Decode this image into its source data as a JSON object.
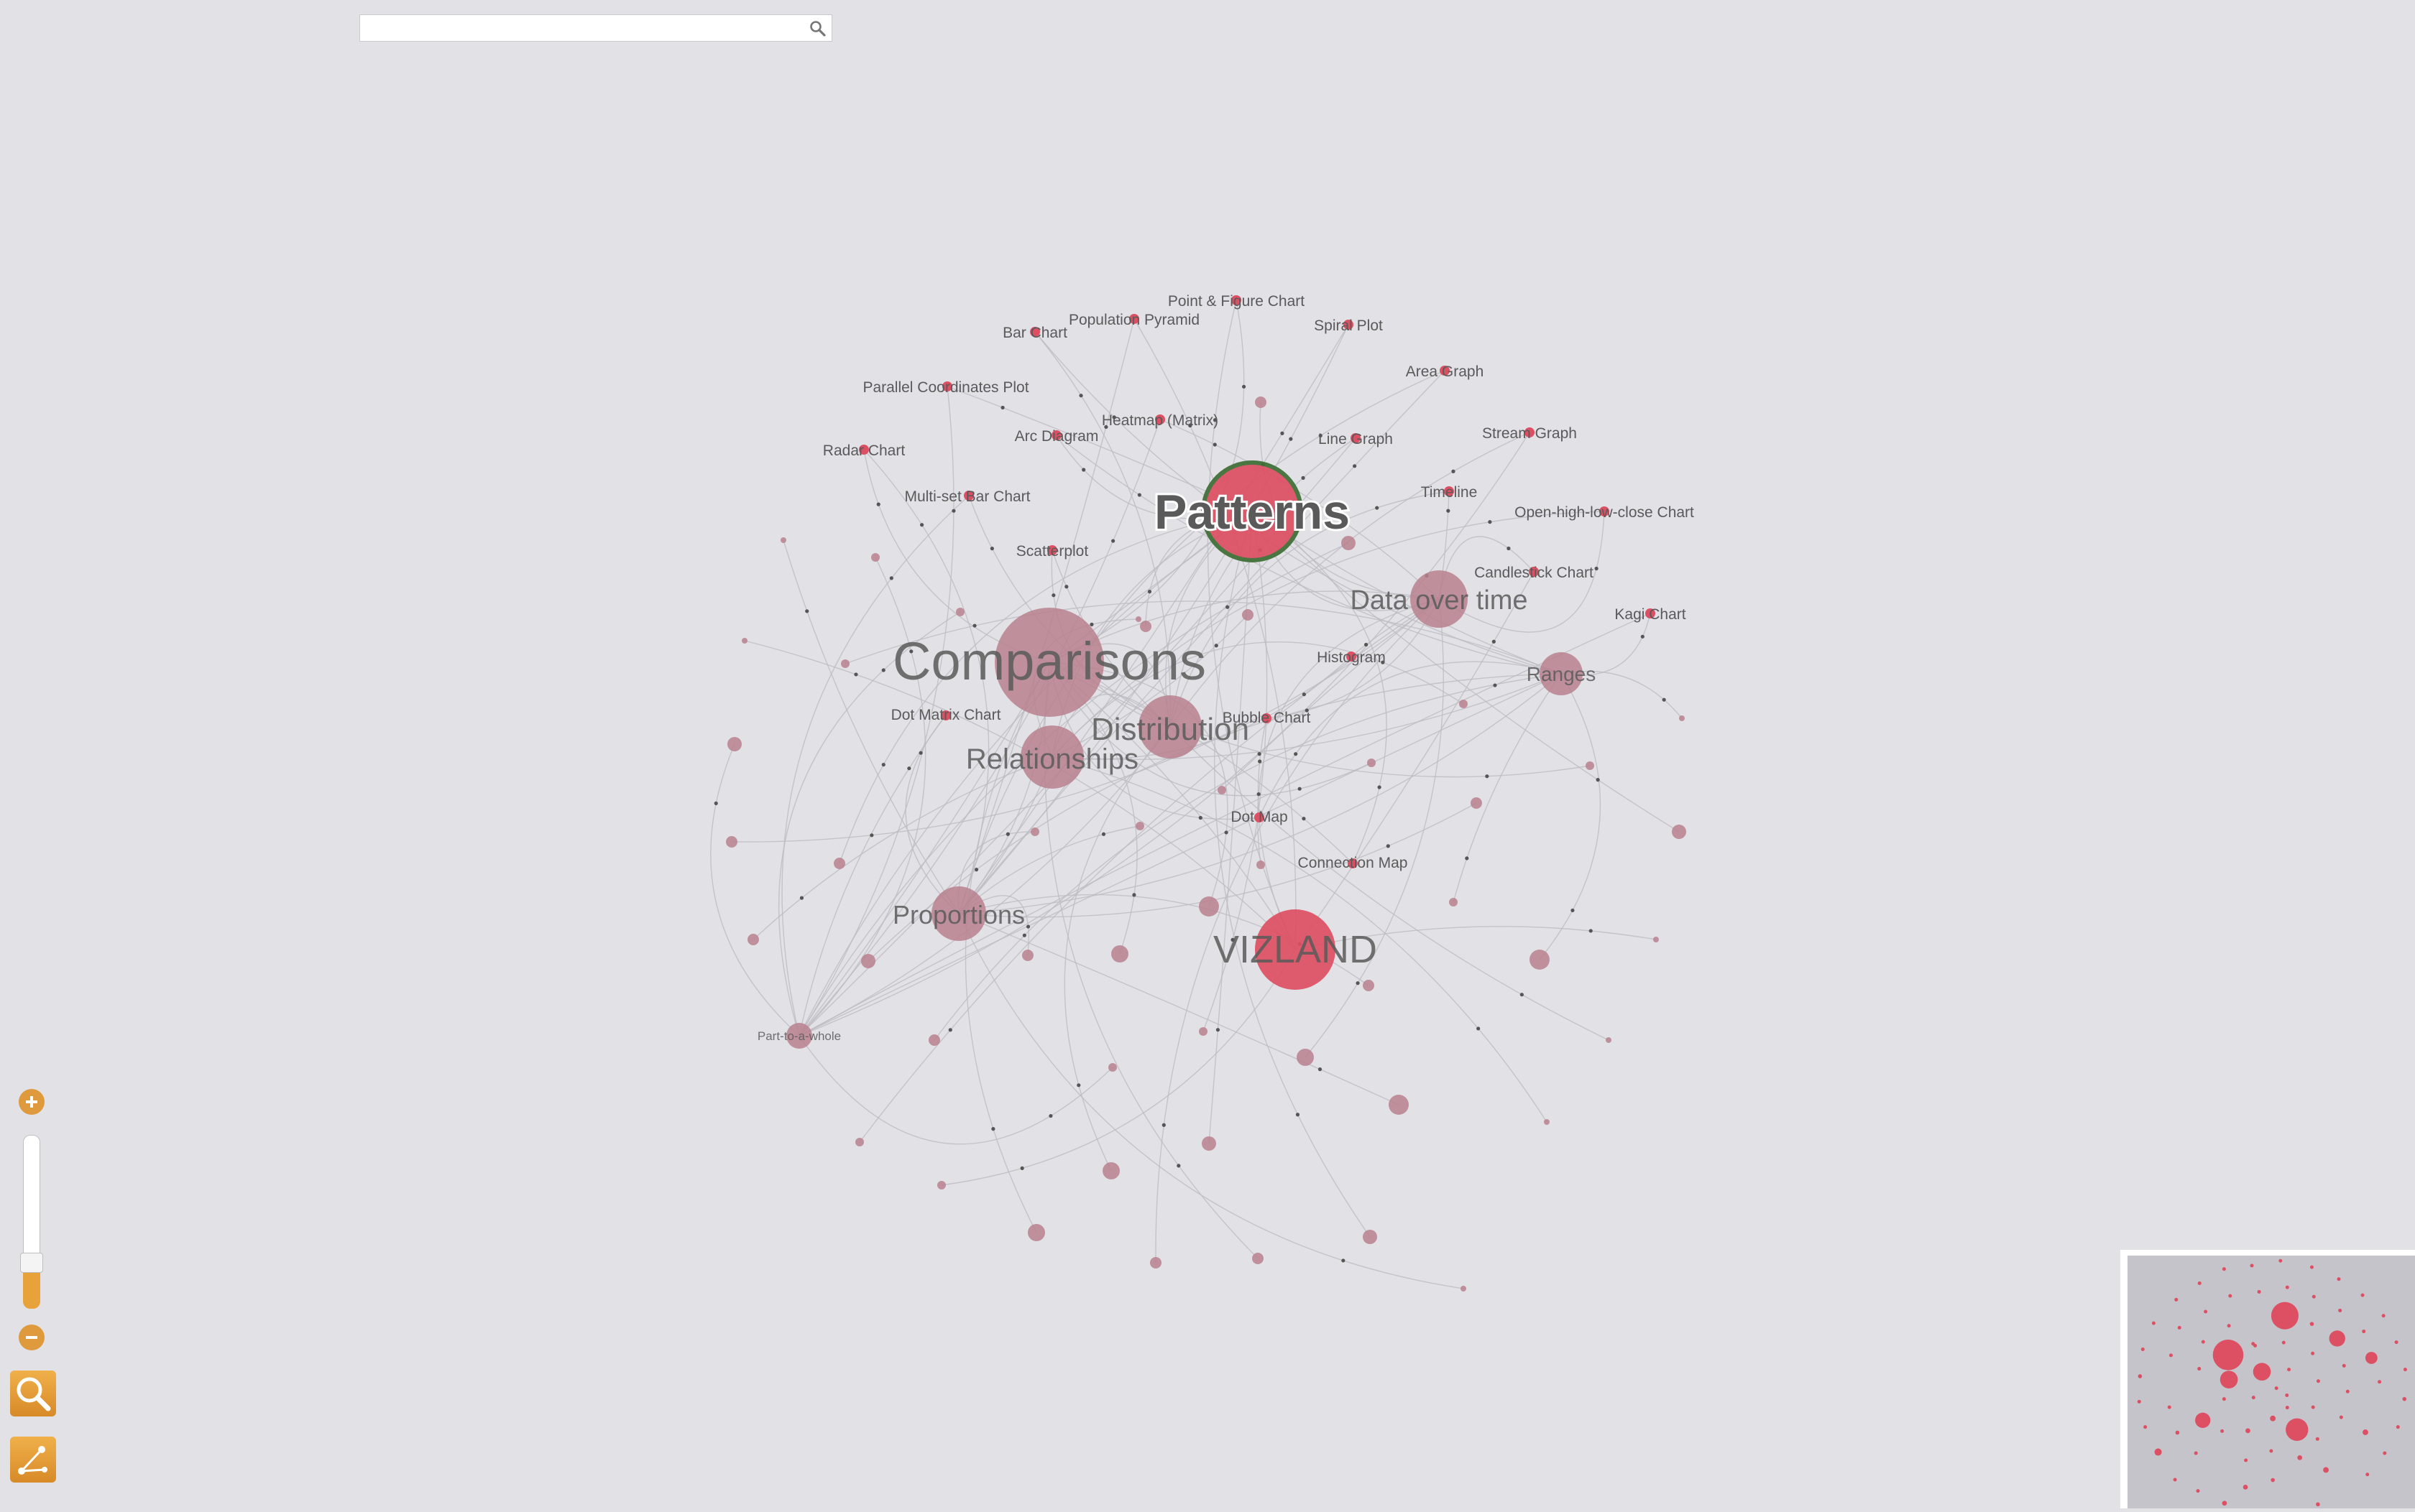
{
  "search": {
    "placeholder": "",
    "value": ""
  },
  "icons": {
    "search": "search-icon",
    "zoom_in": "plus-icon",
    "zoom_out": "minus-icon",
    "tool_search": "magnifier-icon",
    "tool_graph": "graph-icon"
  },
  "colors": {
    "background": "#e1e1e6",
    "hub": "#b9818e",
    "leaf": "#dd4f63",
    "selected_ring": "#3e6e35",
    "edge": "#bcbcc2",
    "accent": "#e09a3e"
  },
  "zoom": {
    "level": 0.25
  },
  "graph": {
    "selected": "Patterns",
    "hubs": [
      {
        "id": "comparisons",
        "label": "Comparisons",
        "size": "huge"
      },
      {
        "id": "patterns",
        "label": "Patterns",
        "size": "large",
        "selected": true
      },
      {
        "id": "vizland",
        "label": "VIZLAND",
        "size": "large"
      },
      {
        "id": "distribution",
        "label": "Distribution",
        "size": "medium"
      },
      {
        "id": "relationships",
        "label": "Relationships",
        "size": "medium"
      },
      {
        "id": "data_over_time",
        "label": "Data over time",
        "size": "medium"
      },
      {
        "id": "proportions",
        "label": "Proportions",
        "size": "medium"
      },
      {
        "id": "ranges",
        "label": "Ranges",
        "size": "small"
      },
      {
        "id": "part_to_whole",
        "label": "Part-to-a-whole",
        "size": "small"
      }
    ],
    "leaves": [
      "Point & Figure Chart",
      "Population Pyramid",
      "Spiral Plot",
      "Bar Chart",
      "Area Graph",
      "Parallel Coordinates Plot",
      "Heatmap (Matrix)",
      "Stream Graph",
      "Arc Diagram",
      "Line Graph",
      "Radar Chart",
      "Timeline",
      "Multi-set Bar Chart",
      "Open-high-low-close Chart",
      "Scatterplot",
      "Candlestick Chart",
      "Kagi Chart",
      "Histogram",
      "Dot Matrix Chart",
      "Bubble Chart",
      "Dot Map",
      "Connection Map"
    ]
  }
}
